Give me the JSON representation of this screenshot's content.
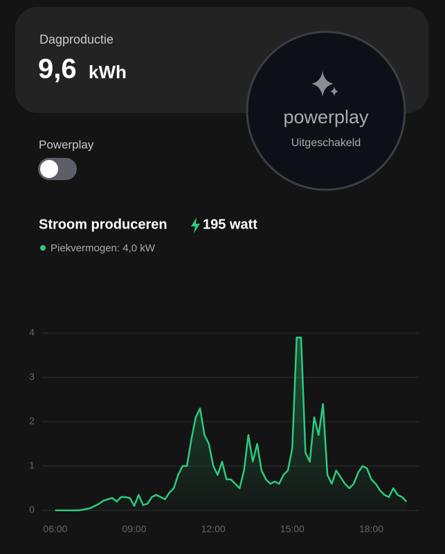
{
  "header": {
    "title": "Dagproductie",
    "value": "9,6",
    "unit": "kWh"
  },
  "powerplay_badge": {
    "brand": "powerplay",
    "status": "Uitgeschakeld"
  },
  "toggle": {
    "label": "Powerplay"
  },
  "production": {
    "title": "Stroom produceren",
    "current": "195 watt",
    "peak_legend": "Piekvermogen: 4,0 kW"
  },
  "chart_data": {
    "type": "area",
    "x": [
      360,
      370,
      380,
      390,
      400,
      410,
      420,
      430,
      440,
      450,
      460,
      470,
      480,
      490,
      500,
      510,
      520,
      530,
      540,
      550,
      560,
      570,
      580,
      590,
      600,
      610,
      620,
      630,
      640,
      650,
      660,
      670,
      680,
      690,
      700,
      710,
      720,
      730,
      740,
      750,
      760,
      770,
      780,
      790,
      800,
      810,
      820,
      830,
      840,
      850,
      860,
      870,
      880,
      890,
      900,
      910,
      920,
      930,
      940,
      950,
      960,
      970,
      980,
      990,
      1000,
      1010,
      1020,
      1030,
      1040,
      1050,
      1060,
      1070,
      1080,
      1090,
      1100,
      1110,
      1120,
      1130,
      1140,
      1150,
      1160
    ],
    "series": [
      {
        "name": "Piekvermogen: 4,0 kW",
        "color": "#2ccb7e",
        "values": [
          0,
          0,
          0,
          0,
          0,
          0,
          0.01,
          0.03,
          0.05,
          0.1,
          0.15,
          0.22,
          0.25,
          0.28,
          0.2,
          0.3,
          0.3,
          0.28,
          0.1,
          0.35,
          0.12,
          0.15,
          0.3,
          0.35,
          0.3,
          0.25,
          0.4,
          0.5,
          0.8,
          1.0,
          1.0,
          1.6,
          2.1,
          2.3,
          1.7,
          1.5,
          1.0,
          0.8,
          1.1,
          0.7,
          0.7,
          0.6,
          0.5,
          0.9,
          1.7,
          1.1,
          1.5,
          0.9,
          0.7,
          0.6,
          0.65,
          0.6,
          0.8,
          0.9,
          1.4,
          3.9,
          3.9,
          1.3,
          1.1,
          2.1,
          1.7,
          2.4,
          0.8,
          0.6,
          0.9,
          0.75,
          0.6,
          0.5,
          0.6,
          0.85,
          1.0,
          0.95,
          0.7,
          0.6,
          0.45,
          0.35,
          0.3,
          0.5,
          0.35,
          0.3,
          0.2
        ]
      }
    ],
    "xlim": [
      324,
      1188
    ],
    "xticks": [
      {
        "value": 360,
        "label": "06:00"
      },
      {
        "value": 540,
        "label": "09:00"
      },
      {
        "value": 720,
        "label": "12:00"
      },
      {
        "value": 900,
        "label": "15:00"
      },
      {
        "value": 1080,
        "label": "18:00"
      }
    ],
    "ylim": [
      0,
      4
    ],
    "yticks": [
      0,
      1,
      2,
      3,
      4
    ],
    "grid": true
  }
}
